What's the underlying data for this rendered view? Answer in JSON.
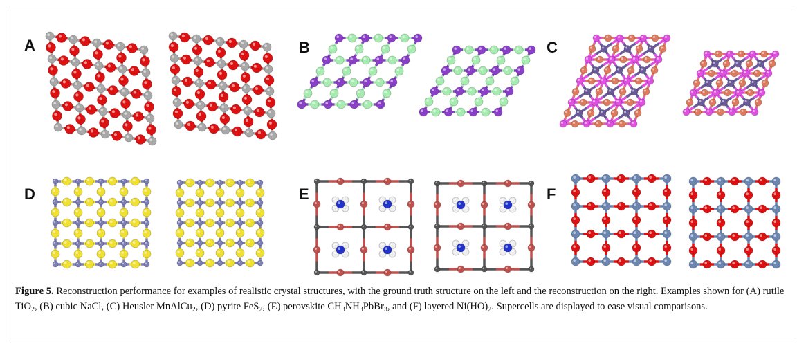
{
  "figure": {
    "panels": [
      {
        "label": "A"
      },
      {
        "label": "B"
      },
      {
        "label": "C"
      },
      {
        "label": "D"
      },
      {
        "label": "E"
      },
      {
        "label": "F"
      }
    ],
    "caption": {
      "label": "Figure 5.",
      "parts": [
        {
          "text": " Reconstruction performance for examples of realistic crystal structures, with the ground truth structure on the left and the reconstruction on the right. Examples shown for (A) rutile TiO"
        },
        {
          "sub": "2"
        },
        {
          "text": ", (B) cubic NaCl, (C) Heusler MnAlCu"
        },
        {
          "sub": "2"
        },
        {
          "text": ", (D) pyrite FeS"
        },
        {
          "sub": "2"
        },
        {
          "text": ", (E) perovskite CH"
        },
        {
          "sub": "3"
        },
        {
          "text": "NH"
        },
        {
          "sub": "3"
        },
        {
          "text": "PbBr"
        },
        {
          "sub": "3"
        },
        {
          "text": ", and (F) layered Ni(HO)"
        },
        {
          "sub": "2"
        },
        {
          "text": ". Supercells are displayed to ease visual comparisons."
        }
      ]
    }
  }
}
